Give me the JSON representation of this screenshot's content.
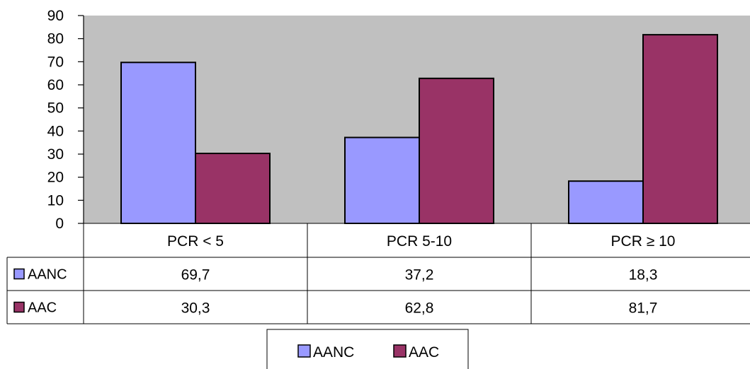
{
  "chart_data": {
    "type": "bar",
    "categories": [
      "PCR < 5",
      "PCR 5-10",
      "PCR ≥ 10"
    ],
    "series": [
      {
        "name": "AANC",
        "values": [
          69.7,
          37.2,
          18.3
        ],
        "labels": [
          "69,7",
          "37,2",
          "18,3"
        ],
        "color": "#9999ff"
      },
      {
        "name": "AAC",
        "values": [
          30.3,
          62.8,
          81.7
        ],
        "labels": [
          "30,3",
          "62,8",
          "81,7"
        ],
        "color": "#993366"
      }
    ],
    "ylim": [
      0,
      90
    ],
    "yticks": [
      0,
      10,
      20,
      30,
      40,
      50,
      60,
      70,
      80,
      90
    ],
    "plot_background": "#c0c0c0",
    "grid": false,
    "data_table": true,
    "legend": {
      "position": "bottom",
      "entries": [
        "AANC",
        "AAC"
      ]
    }
  }
}
